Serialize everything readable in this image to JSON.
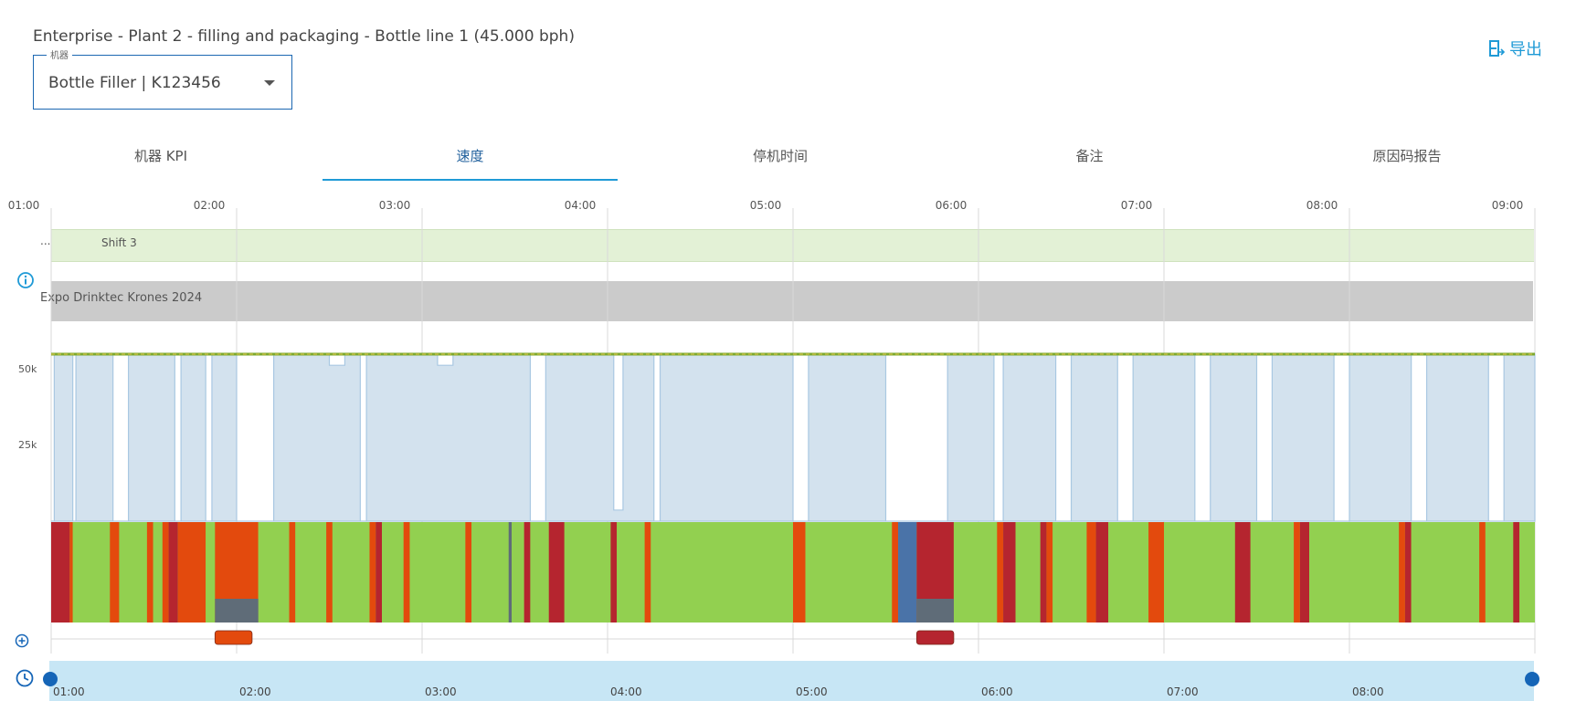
{
  "header": {
    "title": "Enterprise - Plant 2 - filling and packaging - Bottle line 1 (45.000 bph)",
    "export_label": "导出",
    "export_icon": "export-icon"
  },
  "machine_select": {
    "legend": "机器",
    "value": "Bottle Filler | K123456"
  },
  "tabs": [
    {
      "label": "机器 KPI",
      "active": false
    },
    {
      "label": "速度",
      "active": true
    },
    {
      "label": "停机时间",
      "active": false
    },
    {
      "label": "备注",
      "active": false
    },
    {
      "label": "原因码报告",
      "active": false
    }
  ],
  "timeline": {
    "top_ticks": [
      "01:00",
      "02:00",
      "03:00",
      "04:00",
      "05:00",
      "06:00",
      "07:00",
      "08:00",
      "09:00"
    ],
    "bottom_ticks": [
      "01:00",
      "02:00",
      "03:00",
      "04:00",
      "05:00",
      "06:00",
      "07:00",
      "08:00"
    ],
    "shift_label": "Shift 3",
    "shift_overflow": "...",
    "event_label": "Expo Drinktec Krones 2024",
    "y_ticks": [
      "50k",
      "25k"
    ]
  },
  "colors": {
    "running": "#92d050",
    "fault": "#e34a0d",
    "stop_red": "#b5252f",
    "blue_state": "#4a73a8",
    "grey_state": "#5f6c78",
    "speed_fill": "#d3e2ee",
    "speed_line": "#a9c8e2",
    "target_line": "#7da92f",
    "accent": "#1f9ad6"
  },
  "chart_data": {
    "type": "area",
    "title": "",
    "xlabel": "",
    "ylabel": "",
    "x_range": [
      "01:00",
      "09:00"
    ],
    "ylim": [
      0,
      55000
    ],
    "target_speed": 45000,
    "speed_series": [
      {
        "x": "01:00",
        "y": 0
      },
      {
        "x": "01:01",
        "y": 45000
      },
      {
        "x": "01:07",
        "y": 0
      },
      {
        "x": "01:08",
        "y": 45000
      },
      {
        "x": "01:20",
        "y": 0
      },
      {
        "x": "01:25",
        "y": 45000
      },
      {
        "x": "01:40",
        "y": 0
      },
      {
        "x": "01:42",
        "y": 45000
      },
      {
        "x": "01:50",
        "y": 0
      },
      {
        "x": "01:52",
        "y": 45000
      },
      {
        "x": "02:00",
        "y": 0
      },
      {
        "x": "02:12",
        "y": 45000
      },
      {
        "x": "02:30",
        "y": 42000
      },
      {
        "x": "02:35",
        "y": 45000
      },
      {
        "x": "02:40",
        "y": 0
      },
      {
        "x": "02:42",
        "y": 45000
      },
      {
        "x": "03:05",
        "y": 42000
      },
      {
        "x": "03:10",
        "y": 45000
      },
      {
        "x": "03:35",
        "y": 0
      },
      {
        "x": "03:40",
        "y": 45000
      },
      {
        "x": "04:02",
        "y": 3000
      },
      {
        "x": "04:05",
        "y": 45000
      },
      {
        "x": "04:15",
        "y": 0
      },
      {
        "x": "04:17",
        "y": 45000
      },
      {
        "x": "05:00",
        "y": 0
      },
      {
        "x": "05:05",
        "y": 45000
      },
      {
        "x": "05:30",
        "y": 0
      },
      {
        "x": "05:50",
        "y": 45000
      },
      {
        "x": "06:05",
        "y": 0
      },
      {
        "x": "06:08",
        "y": 45000
      },
      {
        "x": "06:25",
        "y": 0
      },
      {
        "x": "06:30",
        "y": 45000
      },
      {
        "x": "06:45",
        "y": 0
      },
      {
        "x": "06:50",
        "y": 45000
      },
      {
        "x": "07:10",
        "y": 0
      },
      {
        "x": "07:15",
        "y": 45000
      },
      {
        "x": "07:30",
        "y": 0
      },
      {
        "x": "07:35",
        "y": 45000
      },
      {
        "x": "07:55",
        "y": 0
      },
      {
        "x": "08:00",
        "y": 45000
      },
      {
        "x": "08:20",
        "y": 0
      },
      {
        "x": "08:25",
        "y": 45000
      },
      {
        "x": "08:45",
        "y": 0
      },
      {
        "x": "08:50",
        "y": 45000
      },
      {
        "x": "09:00",
        "y": 45000
      }
    ],
    "state_segments": [
      {
        "start": "01:00",
        "end": "01:06",
        "state": "stop_red"
      },
      {
        "start": "01:06",
        "end": "01:07",
        "state": "fault"
      },
      {
        "start": "01:07",
        "end": "01:19",
        "state": "running"
      },
      {
        "start": "01:19",
        "end": "01:22",
        "state": "fault"
      },
      {
        "start": "01:22",
        "end": "01:31",
        "state": "running"
      },
      {
        "start": "01:31",
        "end": "01:33",
        "state": "fault"
      },
      {
        "start": "01:33",
        "end": "01:36",
        "state": "running"
      },
      {
        "start": "01:36",
        "end": "01:38",
        "state": "fault"
      },
      {
        "start": "01:38",
        "end": "01:41",
        "state": "stop_red"
      },
      {
        "start": "01:41",
        "end": "01:50",
        "state": "fault"
      },
      {
        "start": "01:50",
        "end": "01:53",
        "state": "running"
      },
      {
        "start": "01:53",
        "end": "02:07",
        "state": "fault"
      },
      {
        "start": "02:07",
        "end": "02:17",
        "state": "running"
      },
      {
        "start": "02:17",
        "end": "02:19",
        "state": "fault"
      },
      {
        "start": "02:19",
        "end": "02:29",
        "state": "running"
      },
      {
        "start": "02:29",
        "end": "02:31",
        "state": "fault"
      },
      {
        "start": "02:31",
        "end": "02:43",
        "state": "running"
      },
      {
        "start": "02:43",
        "end": "02:45",
        "state": "fault"
      },
      {
        "start": "02:45",
        "end": "02:47",
        "state": "stop_red"
      },
      {
        "start": "02:47",
        "end": "02:54",
        "state": "running"
      },
      {
        "start": "02:54",
        "end": "02:56",
        "state": "fault"
      },
      {
        "start": "02:56",
        "end": "03:14",
        "state": "running"
      },
      {
        "start": "03:14",
        "end": "03:16",
        "state": "fault"
      },
      {
        "start": "03:16",
        "end": "03:28",
        "state": "running"
      },
      {
        "start": "03:28",
        "end": "03:29",
        "state": "grey_state"
      },
      {
        "start": "03:29",
        "end": "03:33",
        "state": "running"
      },
      {
        "start": "03:33",
        "end": "03:35",
        "state": "stop_red"
      },
      {
        "start": "03:35",
        "end": "03:41",
        "state": "running"
      },
      {
        "start": "03:41",
        "end": "03:46",
        "state": "stop_red"
      },
      {
        "start": "04:01",
        "end": "04:03",
        "state": "stop_red"
      },
      {
        "start": "04:03",
        "end": "04:12",
        "state": "running"
      },
      {
        "start": "04:12",
        "end": "04:14",
        "state": "fault"
      },
      {
        "start": "04:14",
        "end": "05:00",
        "state": "running"
      },
      {
        "start": "05:00",
        "end": "05:04",
        "state": "fault"
      },
      {
        "start": "05:04",
        "end": "05:32",
        "state": "running"
      },
      {
        "start": "05:32",
        "end": "05:34",
        "state": "fault"
      },
      {
        "start": "05:34",
        "end": "05:40",
        "state": "blue_state"
      },
      {
        "start": "05:40",
        "end": "05:52",
        "state": "stop_red"
      },
      {
        "start": "05:52",
        "end": "06:06",
        "state": "running"
      },
      {
        "start": "06:06",
        "end": "06:08",
        "state": "fault"
      },
      {
        "start": "06:08",
        "end": "06:12",
        "state": "stop_red"
      },
      {
        "start": "06:12",
        "end": "06:20",
        "state": "running"
      },
      {
        "start": "06:20",
        "end": "06:22",
        "state": "stop_red"
      },
      {
        "start": "06:22",
        "end": "06:24",
        "state": "fault"
      },
      {
        "start": "06:24",
        "end": "06:35",
        "state": "running"
      },
      {
        "start": "06:35",
        "end": "06:38",
        "state": "fault"
      },
      {
        "start": "06:38",
        "end": "06:42",
        "state": "stop_red"
      },
      {
        "start": "06:42",
        "end": "06:55",
        "state": "running"
      },
      {
        "start": "06:55",
        "end": "07:00",
        "state": "fault"
      },
      {
        "start": "07:00",
        "end": "07:23",
        "state": "running"
      },
      {
        "start": "07:23",
        "end": "07:28",
        "state": "stop_red"
      },
      {
        "start": "07:28",
        "end": "07:42",
        "state": "running"
      },
      {
        "start": "07:42",
        "end": "07:44",
        "state": "fault"
      },
      {
        "start": "07:44",
        "end": "07:47",
        "state": "stop_red"
      },
      {
        "start": "07:47",
        "end": "08:16",
        "state": "running"
      },
      {
        "start": "08:16",
        "end": "08:18",
        "state": "fault"
      },
      {
        "start": "08:18",
        "end": "08:20",
        "state": "stop_red"
      },
      {
        "start": "08:20",
        "end": "08:42",
        "state": "running"
      },
      {
        "start": "08:42",
        "end": "08:44",
        "state": "fault"
      },
      {
        "start": "08:44",
        "end": "08:53",
        "state": "running"
      },
      {
        "start": "08:53",
        "end": "08:55",
        "state": "stop_red"
      },
      {
        "start": "08:55",
        "end": "09:00",
        "state": "running"
      }
    ],
    "lower_segments": [
      {
        "start": "01:53",
        "end": "02:07",
        "state": "grey_state"
      },
      {
        "start": "05:40",
        "end": "05:52",
        "state": "grey_state"
      }
    ],
    "markers": [
      {
        "start": "01:53",
        "end": "02:05",
        "state": "fault"
      },
      {
        "start": "05:40",
        "end": "05:52",
        "state": "stop_red"
      }
    ]
  }
}
